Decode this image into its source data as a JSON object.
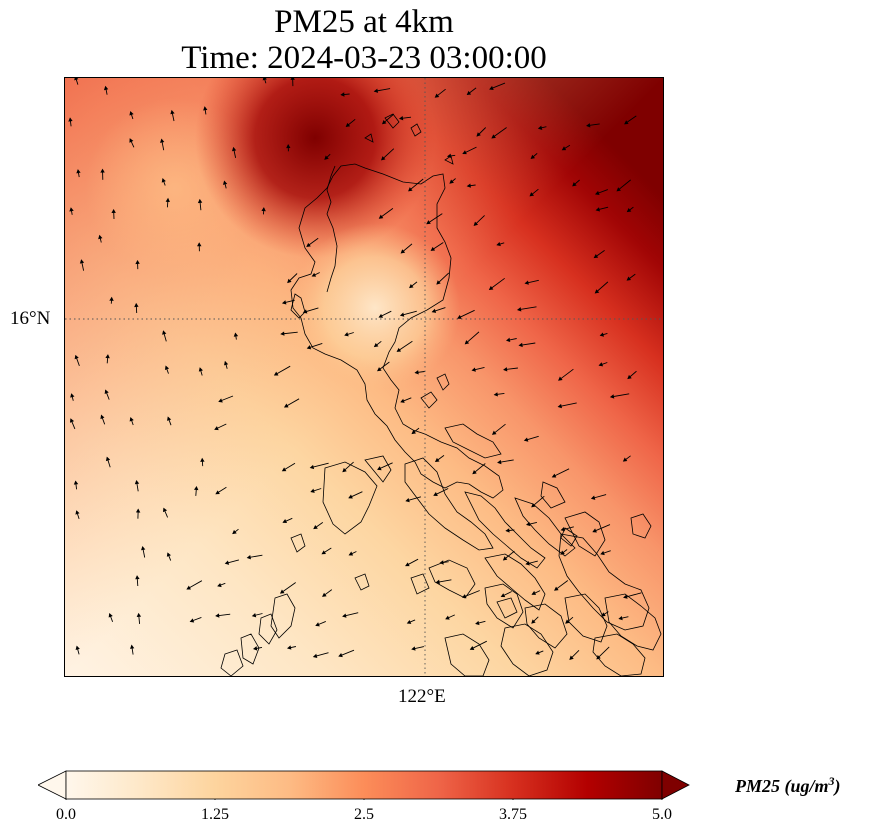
{
  "title": {
    "line1": "PM25 at 4km",
    "line2": "Time: 2024-03-23 03:00:00"
  },
  "axes": {
    "lat_label": "16°N",
    "lon_label": "122°E"
  },
  "gridlines": {
    "style": "dotted",
    "color": "#555555"
  },
  "colorbar": {
    "label_main": "PM25 (ug/m",
    "label_sup": "3",
    "label_end": ")",
    "min": 0.0,
    "max": 5.0,
    "ticks": [
      "0.0",
      "1.25",
      "2.5",
      "3.75",
      "5.0"
    ],
    "extend": "both",
    "colormap": "OrRd",
    "colors": [
      "#fff7ec",
      "#fee8c8",
      "#fdd49e",
      "#fdbb84",
      "#fc8d59",
      "#ef6548",
      "#d7301f",
      "#b30000",
      "#7f0000"
    ]
  }
}
